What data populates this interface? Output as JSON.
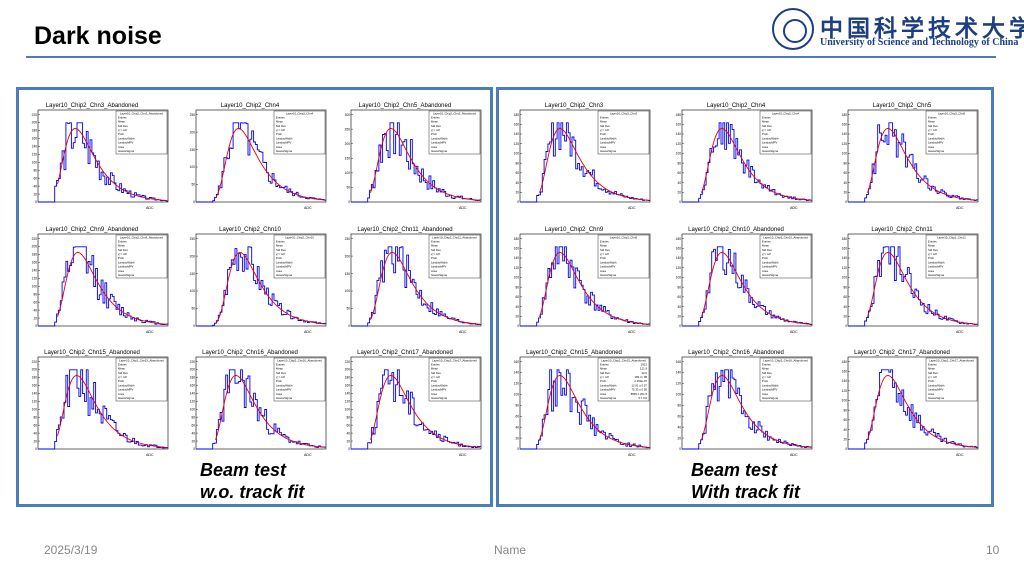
{
  "slide": {
    "title": "Dark noise",
    "logo": {
      "cn": "中国科学技术大学",
      "en": "University of Science and Technology of China"
    },
    "date": "2025/3/19",
    "footer_name": "Name",
    "page": "10"
  },
  "captions": {
    "left": [
      "Beam test",
      "w.o. track fit"
    ],
    "right": [
      "Beam test",
      "With track fit"
    ]
  },
  "colors": {
    "panel_border": "#4a7ebb",
    "hist": "#0000ee",
    "fit": "#ee0000",
    "title_rule": "#4a7ebb"
  },
  "chart_data": [
    {
      "type": "line",
      "panel": "left",
      "title": "Layer10_Chip2_Chn3_Abandoned",
      "xlabel": "ADC",
      "yticks": [
        0,
        20,
        40,
        60,
        80,
        100,
        120,
        140,
        160,
        180,
        200,
        220
      ],
      "stats": [
        "Entries",
        "Mean",
        "Std Dev",
        "χ² / ndf",
        "Prob",
        "LandauWidth",
        "LandauMPV",
        "Area",
        "GaussSigma"
      ],
      "peak": 0.28,
      "noise": 0.4,
      "seed": 3
    },
    {
      "type": "line",
      "panel": "left",
      "title": "Layer10_Chip2_Chn4",
      "xlabel": "ADC",
      "yticks": [
        0,
        50,
        100,
        150,
        200,
        250
      ],
      "stats": [
        "Entries",
        "Mean",
        "Std Dev",
        "χ² / ndf",
        "Prob",
        "LandauWidth",
        "LandauMPV",
        "Area",
        "GaussSigma"
      ],
      "peak": 0.32,
      "noise": 0.35,
      "seed": 4
    },
    {
      "type": "line",
      "panel": "left",
      "title": "Layer10_Chip2_Chn5_Abandoned",
      "xlabel": "ADC",
      "yticks": [
        0,
        50,
        100,
        150,
        200,
        250,
        300
      ],
      "stats": [
        "Entries",
        "Mean",
        "Std Dev",
        "χ² / ndf",
        "Prob",
        "LandauWidth",
        "LandauMPV",
        "Area",
        "GaussSigma"
      ],
      "peak": 0.3,
      "noise": 0.45,
      "seed": 5
    },
    {
      "type": "line",
      "panel": "left",
      "title": "Layer10_Chip2_Chn9_Abandoned",
      "xlabel": "ADC",
      "yticks": [
        0,
        20,
        40,
        60,
        80,
        100,
        120,
        140,
        160,
        180,
        200,
        220
      ],
      "stats": [
        "Entries",
        "Mean",
        "Std Dev",
        "χ² / ndf",
        "Prob",
        "LandauWidth",
        "LandauMPV",
        "Area",
        "GaussSigma"
      ],
      "peak": 0.3,
      "noise": 0.4,
      "seed": 9
    },
    {
      "type": "line",
      "panel": "left",
      "title": "Layer10_Chip2_Chn10",
      "xlabel": "ADC",
      "yticks": [
        0,
        50,
        100,
        150,
        200,
        250
      ],
      "stats": [
        "Entries",
        "Mean",
        "Std Dev",
        "χ² / ndf",
        "Prob",
        "LandauWidth",
        "LandauMPV",
        "Area",
        "GaussSigma"
      ],
      "peak": 0.33,
      "noise": 0.3,
      "seed": 10
    },
    {
      "type": "line",
      "panel": "left",
      "title": "Layer10_Chip2_Chn11_Abandoned",
      "xlabel": "ADC",
      "yticks": [
        0,
        50,
        100,
        150,
        200,
        250
      ],
      "stats": [
        "Entries",
        "Mean",
        "Std Dev",
        "χ² / ndf",
        "Prob",
        "LandauWidth",
        "LandauMPV",
        "Area",
        "GaussSigma"
      ],
      "peak": 0.31,
      "noise": 0.35,
      "seed": 11
    },
    {
      "type": "line",
      "panel": "left",
      "title": "Layer10_Chip2_Chn15_Abandoned",
      "xlabel": "ADC",
      "yticks": [
        0,
        20,
        40,
        60,
        80,
        100,
        120,
        140,
        160,
        180,
        200,
        220
      ],
      "stats": [
        "Entries",
        "Mean",
        "Std Dev",
        "χ² / ndf",
        "Prob",
        "LandauWidth",
        "LandauMPV",
        "Area",
        "GaussSigma"
      ],
      "peak": 0.29,
      "noise": 0.45,
      "seed": 15
    },
    {
      "type": "line",
      "panel": "left",
      "title": "Layer10_Chip2_Chn16_Abandoned",
      "xlabel": "ADC",
      "yticks": [
        0,
        20,
        40,
        60,
        80,
        100,
        120,
        140,
        160,
        180,
        200,
        220
      ],
      "stats": [
        "Entries",
        "Mean",
        "Std Dev",
        "χ² / ndf",
        "Prob",
        "LandauWidth",
        "LandauMPV",
        "Area",
        "GaussSigma"
      ],
      "peak": 0.3,
      "noise": 0.4,
      "seed": 16
    },
    {
      "type": "line",
      "panel": "left",
      "title": "Layer10_Chip2_Chn17_Abandoned",
      "xlabel": "ADC",
      "yticks": [
        0,
        20,
        40,
        60,
        80,
        100,
        120,
        140,
        160,
        180,
        200,
        220
      ],
      "stats": [
        "Entries",
        "Mean",
        "Std Dev",
        "χ² / ndf",
        "Prob",
        "LandauWidth",
        "LandauMPV",
        "Area",
        "GaussSigma"
      ],
      "peak": 0.3,
      "noise": 0.4,
      "seed": 17
    },
    {
      "type": "line",
      "panel": "right",
      "title": "Layer10_Chip2_Chn3",
      "xlabel": "ADC",
      "yticks": [
        0,
        20,
        40,
        60,
        80,
        100,
        120,
        140,
        160,
        180
      ],
      "stats": [
        "Entries",
        "Mean",
        "Std Dev",
        "χ² / ndf",
        "Prob",
        "LandauWidth",
        "LandauMPV",
        "Area",
        "GaussSigma"
      ],
      "peak": 0.3,
      "noise": 0.35,
      "seed": 23
    },
    {
      "type": "line",
      "panel": "right",
      "title": "Layer10_Chip2_Chn4",
      "xlabel": "ADC",
      "yticks": [
        0,
        20,
        40,
        60,
        80,
        100,
        120,
        140,
        160,
        180
      ],
      "stats": [
        "Entries",
        "Mean",
        "Std Dev",
        "χ² / ndf",
        "Prob",
        "LandauWidth",
        "LandauMPV",
        "Area",
        "GaussSigma"
      ],
      "peak": 0.3,
      "noise": 0.3,
      "seed": 24
    },
    {
      "type": "line",
      "panel": "right",
      "title": "Layer10_Chip2_Chn5",
      "xlabel": "ADC",
      "yticks": [
        0,
        20,
        40,
        60,
        80,
        100,
        120,
        140,
        160,
        180
      ],
      "stats": [
        "Entries",
        "Mean",
        "Std Dev",
        "χ² / ndf",
        "Prob",
        "LandauWidth",
        "LandauMPV",
        "Area",
        "GaussSigma"
      ],
      "peak": 0.3,
      "noise": 0.35,
      "seed": 25
    },
    {
      "type": "line",
      "panel": "right",
      "title": "Layer10_Chip2_Chn9",
      "xlabel": "ADC",
      "yticks": [
        0,
        20,
        40,
        60,
        80,
        100,
        120,
        140,
        160,
        180
      ],
      "stats": [
        "Entries",
        "Mean",
        "Std Dev",
        "χ² / ndf",
        "Prob",
        "LandauWidth",
        "LandauMPV",
        "Area",
        "GaussSigma"
      ],
      "peak": 0.3,
      "noise": 0.35,
      "seed": 29
    },
    {
      "type": "line",
      "panel": "right",
      "title": "Layer10_Chip2_Chn10_Abandoned",
      "xlabel": "ADC",
      "yticks": [
        0,
        20,
        40,
        60,
        80,
        100,
        120,
        140,
        160,
        180
      ],
      "stats": [
        "Entries",
        "Mean",
        "Std Dev",
        "χ² / ndf",
        "Prob",
        "LandauWidth",
        "LandauMPV",
        "Area",
        "GaussSigma"
      ],
      "peak": 0.3,
      "noise": 0.3,
      "seed": 30
    },
    {
      "type": "line",
      "panel": "right",
      "title": "Layer10_Chip2_Chn11",
      "xlabel": "ADC",
      "yticks": [
        0,
        20,
        40,
        60,
        80,
        100,
        120,
        140,
        160,
        180
      ],
      "stats": [
        "Entries",
        "Mean",
        "Std Dev",
        "χ² / ndf",
        "Prob",
        "LandauWidth",
        "LandauMPV",
        "Area",
        "GaussSigma"
      ],
      "peak": 0.3,
      "noise": 0.35,
      "seed": 31
    },
    {
      "type": "line",
      "panel": "right",
      "title": "Layer10_Chip2_Chn15_Abandoned",
      "xlabel": "ADC",
      "yticks": [
        0,
        20,
        40,
        60,
        80,
        100,
        120,
        140,
        160
      ],
      "stats": [
        "Entries",
        "Mean",
        "Std Dev",
        "χ² / ndf",
        "Prob",
        "LandauWidth",
        "LandauMPV",
        "Area",
        "GaussSigma"
      ],
      "stat_values": [
        "2913",
        "121.9",
        "42.6",
        "183.4 / 98",
        "2.253e-07",
        "12.01 ± 0.57",
        "75.33 ± 0.95",
        "8595 ± 201.5",
        "5 ± 0.6"
      ],
      "peak": 0.3,
      "noise": 0.45,
      "seed": 35
    },
    {
      "type": "line",
      "panel": "right",
      "title": "Layer10_Chip2_Chn16_Abandoned",
      "xlabel": "ADC",
      "yticks": [
        0,
        20,
        40,
        60,
        80,
        100,
        120,
        140,
        160
      ],
      "stats": [
        "Entries",
        "Mean",
        "Std Dev",
        "χ² / ndf",
        "Prob",
        "LandauWidth",
        "LandauMPV",
        "Area",
        "GaussSigma"
      ],
      "peak": 0.3,
      "noise": 0.35,
      "seed": 36
    },
    {
      "type": "line",
      "panel": "right",
      "title": "Layer10_Chip2_Chn17_Abandoned",
      "xlabel": "ADC",
      "yticks": [
        0,
        20,
        40,
        60,
        80,
        100,
        120,
        140,
        160,
        180
      ],
      "stats": [
        "Entries",
        "Mean",
        "Std Dev",
        "χ² / ndf",
        "Prob",
        "LandauWidth",
        "LandauMPV",
        "Area",
        "GaussSigma"
      ],
      "peak": 0.3,
      "noise": 0.4,
      "seed": 37
    }
  ]
}
